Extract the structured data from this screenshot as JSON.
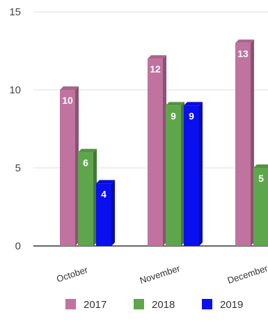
{
  "chart_data": {
    "type": "bar",
    "style": "3d-clustered-column",
    "categories": [
      "October",
      "November",
      "December"
    ],
    "series": [
      {
        "name": "2017",
        "color": "#c0739f",
        "values": [
          10,
          12,
          13
        ]
      },
      {
        "name": "2018",
        "color": "#5ea64c",
        "values": [
          6,
          9,
          5
        ]
      },
      {
        "name": "2019",
        "color": "#0a0ff0",
        "values": [
          4,
          9,
          null
        ]
      }
    ],
    "ylim": [
      0,
      15
    ],
    "yticks": [
      0,
      5,
      10,
      15
    ],
    "grid": true,
    "legend": "bottom",
    "data_labels": true,
    "title": "",
    "xlabel": "",
    "ylabel": ""
  }
}
